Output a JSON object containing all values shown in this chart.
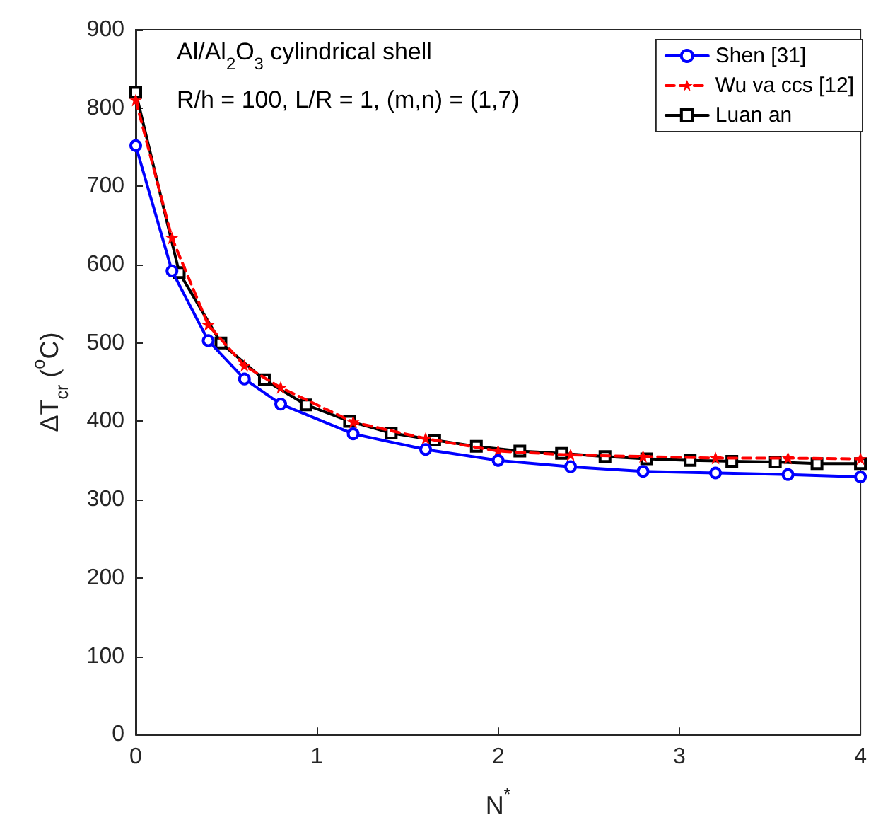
{
  "chart_data": {
    "type": "line",
    "xlabel": "N$^{*}$",
    "ylabel": "ΔT$_{cr}$ ($^{o}$C)",
    "annotations": [
      "Al/Al$_{2}$O$_{3}$ cylindrical shell",
      "R/h = 100, L/R = 1, (m,n) = (1,7)"
    ],
    "xlim": [
      0,
      4
    ],
    "xticks": [
      0,
      1,
      2,
      3,
      4
    ],
    "ylim": [
      0,
      900
    ],
    "yticks": [
      0,
      100,
      200,
      300,
      400,
      500,
      600,
      700,
      800,
      900
    ],
    "grid": false,
    "legend": "top right",
    "series": [
      {
        "name": "Shen [31]",
        "color": "#0000ff",
        "marker": "circle",
        "line_style": "solid",
        "x": [
          0,
          0.2,
          0.4,
          0.6,
          0.8,
          1.2,
          1.6,
          2.0,
          2.4,
          2.8,
          3.2,
          3.6,
          4.0
        ],
        "values": [
          752,
          592,
          503,
          454,
          422,
          384,
          364,
          350,
          342,
          336,
          334,
          332,
          329
        ]
      },
      {
        "name": "Wu va ccs [12]",
        "color": "#ff0000",
        "marker": "star",
        "line_style": "dashed",
        "x": [
          0,
          0.2,
          0.4,
          0.6,
          0.8,
          1.2,
          1.6,
          2.0,
          2.4,
          2.8,
          3.2,
          3.6,
          4.0
        ],
        "values": [
          810,
          634,
          523,
          471,
          443,
          399,
          378,
          362,
          357,
          355,
          353,
          353,
          352
        ]
      },
      {
        "name": "Luan an",
        "color": "#000000",
        "marker": "square",
        "line_style": "solid",
        "x": [
          0,
          0.24,
          0.47,
          0.71,
          0.94,
          1.18,
          1.41,
          1.65,
          1.88,
          2.12,
          2.35,
          2.59,
          2.82,
          3.06,
          3.29,
          3.53,
          3.76,
          4.0
        ],
        "values": [
          820,
          590,
          500,
          453,
          421,
          400,
          385,
          376,
          368,
          362,
          359,
          355,
          352,
          350,
          349,
          348,
          346,
          346
        ]
      }
    ]
  }
}
